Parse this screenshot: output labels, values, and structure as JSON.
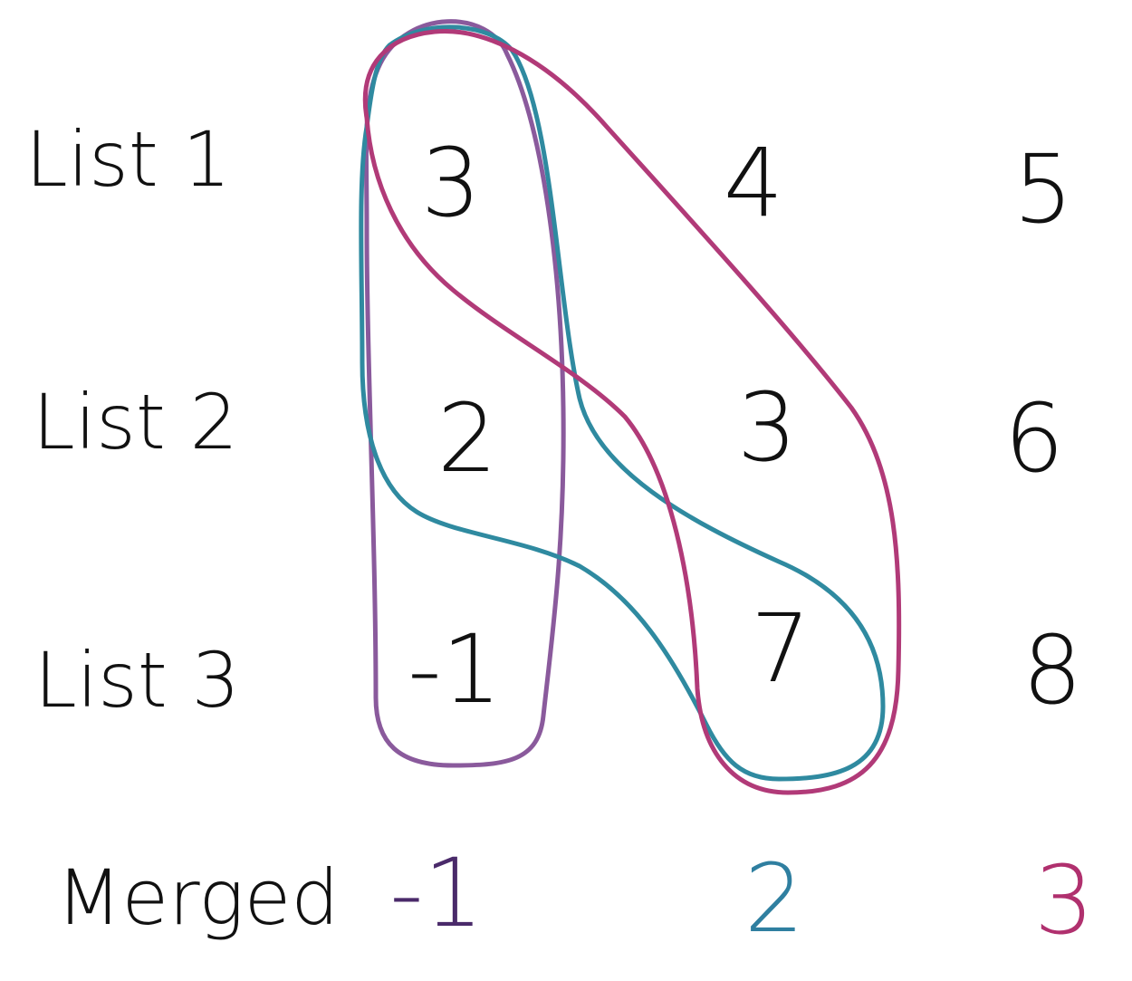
{
  "rows": [
    {
      "label": "List 1",
      "values": [
        "3",
        "4",
        "5"
      ]
    },
    {
      "label": "List 2",
      "values": [
        "2",
        "3",
        "6"
      ]
    },
    {
      "label": "List 3",
      "values": [
        "-1",
        "7",
        "8"
      ]
    }
  ],
  "merged": {
    "label": "Merged",
    "values": [
      "-1",
      "2",
      "3"
    ]
  },
  "colors": {
    "ink": "#111111",
    "purple_loop": "#8a5a9c",
    "teal_loop": "#2f8aa0",
    "magenta_loop": "#b13a78",
    "merged_first": "#4a2a6a",
    "merged_second": "#2f7fa0",
    "merged_third": "#b0306e"
  }
}
